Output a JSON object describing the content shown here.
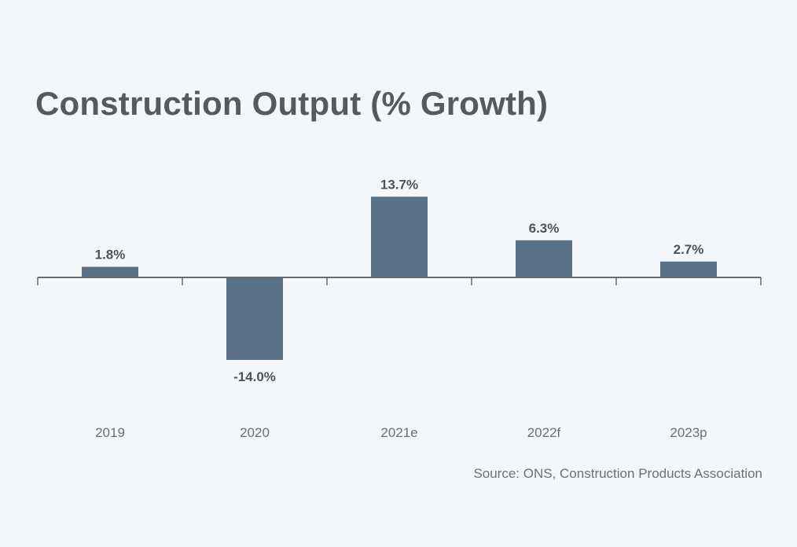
{
  "chart_data": {
    "type": "bar",
    "title": "Construction Output (% Growth)",
    "categories": [
      "2019",
      "2020",
      "2021e",
      "2022f",
      "2023p"
    ],
    "series": [
      {
        "values": [
          1.8,
          -14.0,
          13.7,
          6.3,
          2.7
        ]
      }
    ],
    "data_labels": [
      "1.8%",
      "-14.0%",
      "13.7%",
      "6.3%",
      "2.7%"
    ],
    "xlabel": "",
    "ylabel": "",
    "ylim": [
      -14.0,
      13.7
    ],
    "grid": false,
    "legend": "none",
    "bar_color": "#5a7186",
    "source": "Source: ONS, Construction Products Association"
  }
}
